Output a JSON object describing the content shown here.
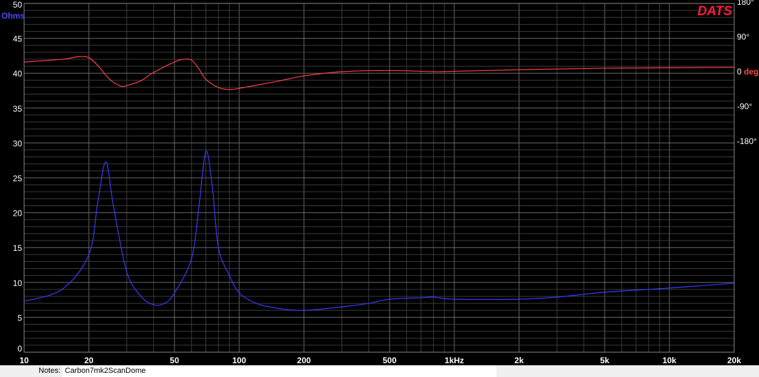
{
  "chart_data": {
    "type": "line",
    "brand": "DATS",
    "xscale": "log",
    "xlim": [
      10,
      20000
    ],
    "x_ticks": [
      10,
      20,
      50,
      100,
      200,
      500,
      1000,
      2000,
      5000,
      10000,
      20000
    ],
    "x_tick_labels": [
      "10",
      "20",
      "50",
      "100",
      "200",
      "500",
      "1kHz",
      "2k",
      "5k",
      "10k",
      "20k"
    ],
    "y_left": {
      "unit_label": "Ohms",
      "ylim": [
        0,
        50
      ],
      "ticks": [
        "0",
        "5",
        "10",
        "15",
        "20",
        "25",
        "30",
        "35",
        "40",
        "45",
        "50"
      ]
    },
    "y_right": {
      "ylim_deg": [
        -180,
        180
      ],
      "ticks": [
        {
          "v": 180,
          "label": "180°"
        },
        {
          "v": 90,
          "label": "90°"
        },
        {
          "v": 0,
          "label": "0",
          "unit": "deg"
        },
        {
          "v": -90,
          "label": "-90°"
        },
        {
          "v": -180,
          "label": "-180°"
        }
      ]
    },
    "grid": true,
    "series": [
      {
        "id": "impedance",
        "color": "#3a3aff",
        "axis": "left",
        "x": [
          10,
          15,
          20,
          22,
          24,
          26,
          30,
          35,
          40,
          45,
          50,
          60,
          65,
          70,
          75,
          80,
          90,
          100,
          120,
          150,
          200,
          300,
          400,
          500,
          700,
          800,
          1000,
          2000,
          3000,
          5000,
          10000,
          20000
        ],
        "y": [
          7.3,
          9,
          14,
          21.5,
          27.3,
          21,
          11.5,
          8,
          6.8,
          7,
          8.5,
          13.4,
          20.9,
          28.8,
          23.7,
          15,
          11,
          8.5,
          7,
          6.3,
          6.0,
          6.5,
          7,
          7.6,
          7.8,
          7.9,
          7.6,
          7.6,
          7.9,
          8.6,
          9.2,
          9.9
        ]
      },
      {
        "id": "phase",
        "color": "#ff4040",
        "axis": "right",
        "x": [
          10,
          15,
          18,
          20,
          22,
          25,
          28,
          30,
          35,
          40,
          50,
          55,
          60,
          65,
          70,
          80,
          90,
          100,
          150,
          200,
          300,
          500,
          800,
          1000,
          2000,
          5000,
          20000
        ],
        "y": [
          25,
          32,
          39,
          36,
          16,
          -20,
          -37,
          -36,
          -23,
          -2,
          25,
          32,
          30,
          7,
          -20,
          -41,
          -46,
          -43,
          -25,
          -11,
          0,
          3,
          0,
          1,
          5,
          9,
          11
        ]
      }
    ]
  },
  "notes": {
    "label": "Notes:",
    "value": "Carbon7mk2ScanDome"
  }
}
